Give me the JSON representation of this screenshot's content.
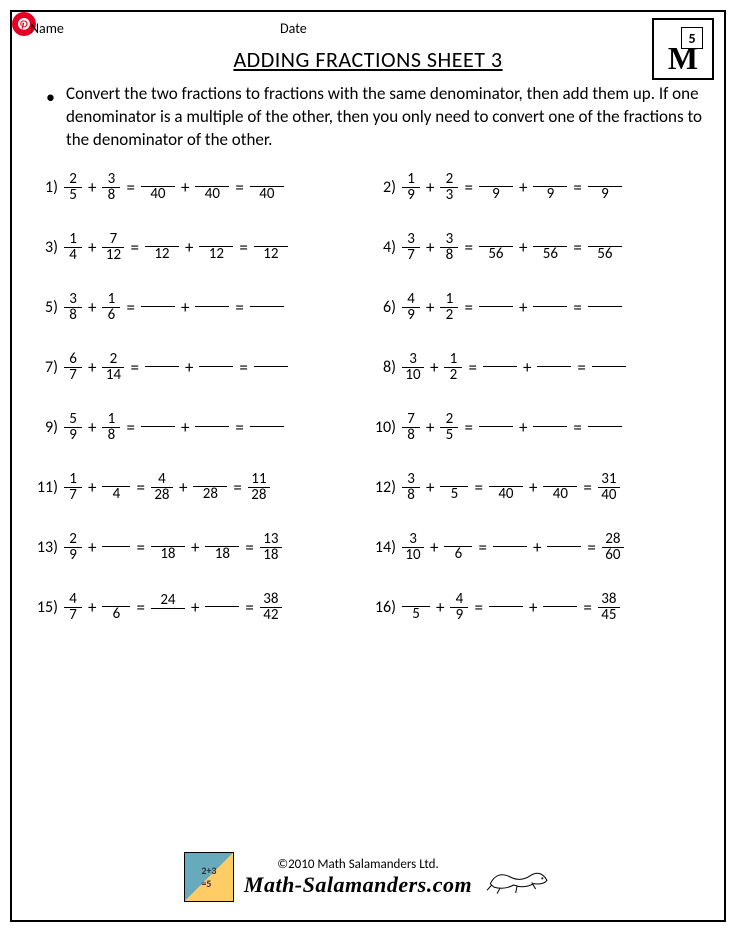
{
  "header": {
    "name_label": "Name",
    "date_label": "Date"
  },
  "logo": {
    "grade_digit": "5",
    "letter": "M"
  },
  "title": "ADDING FRACTIONS SHEET 3",
  "instructions": "Convert the two fractions to fractions with the same denominator, then add them up. If one denominator is a multiple of the other, then you only need to convert one of the fractions to the denominator of the other.",
  "footer": {
    "copyright": "©2010 Math Salamanders Ltd.",
    "site": "Math-Salamanders.com"
  },
  "blank_widths": {
    "narrow": 28,
    "wide": 34
  },
  "problems": [
    {
      "n": "1)",
      "a": {
        "num": "2",
        "den": "5"
      },
      "b": {
        "num": "3",
        "den": "8"
      },
      "r": [
        {
          "num": "",
          "den": "40"
        },
        {
          "num": "",
          "den": "40"
        },
        {
          "num": "",
          "den": "40"
        }
      ]
    },
    {
      "n": "2)",
      "a": {
        "num": "1",
        "den": "9"
      },
      "b": {
        "num": "2",
        "den": "3"
      },
      "r": [
        {
          "num": "",
          "den": "9"
        },
        {
          "num": "",
          "den": "9"
        },
        {
          "num": "",
          "den": "9"
        }
      ]
    },
    {
      "n": "3)",
      "a": {
        "num": "1",
        "den": "4"
      },
      "b": {
        "num": "7",
        "den": "12"
      },
      "r": [
        {
          "num": "",
          "den": "12"
        },
        {
          "num": "",
          "den": "12"
        },
        {
          "num": "",
          "den": "12"
        }
      ]
    },
    {
      "n": "4)",
      "a": {
        "num": "3",
        "den": "7"
      },
      "b": {
        "num": "3",
        "den": "8"
      },
      "r": [
        {
          "num": "",
          "den": "56"
        },
        {
          "num": "",
          "den": "56"
        },
        {
          "num": "",
          "den": "56"
        }
      ]
    },
    {
      "n": "5)",
      "a": {
        "num": "3",
        "den": "8"
      },
      "b": {
        "num": "1",
        "den": "6"
      },
      "r": [
        {
          "num": "",
          "den": ""
        },
        {
          "num": "",
          "den": ""
        },
        {
          "num": "",
          "den": ""
        }
      ]
    },
    {
      "n": "6)",
      "a": {
        "num": "4",
        "den": "9"
      },
      "b": {
        "num": "1",
        "den": "2"
      },
      "r": [
        {
          "num": "",
          "den": ""
        },
        {
          "num": "",
          "den": ""
        },
        {
          "num": "",
          "den": ""
        }
      ]
    },
    {
      "n": "7)",
      "a": {
        "num": "6",
        "den": "7"
      },
      "b": {
        "num": "2",
        "den": "14"
      },
      "r": [
        {
          "num": "",
          "den": ""
        },
        {
          "num": "",
          "den": ""
        },
        {
          "num": "",
          "den": ""
        }
      ]
    },
    {
      "n": "8)",
      "a": {
        "num": "3",
        "den": "10"
      },
      "b": {
        "num": "1",
        "den": "2"
      },
      "r": [
        {
          "num": "",
          "den": ""
        },
        {
          "num": "",
          "den": ""
        },
        {
          "num": "",
          "den": ""
        }
      ]
    },
    {
      "n": "9)",
      "a": {
        "num": "5",
        "den": "9"
      },
      "b": {
        "num": "1",
        "den": "8"
      },
      "r": [
        {
          "num": "",
          "den": ""
        },
        {
          "num": "",
          "den": ""
        },
        {
          "num": "",
          "den": ""
        }
      ]
    },
    {
      "n": "10)",
      "a": {
        "num": "7",
        "den": "8"
      },
      "b": {
        "num": "2",
        "den": "5"
      },
      "r": [
        {
          "num": "",
          "den": ""
        },
        {
          "num": "",
          "den": ""
        },
        {
          "num": "",
          "den": ""
        }
      ]
    },
    {
      "n": "11)",
      "a": {
        "num": "1",
        "den": "7"
      },
      "b": {
        "num": "",
        "den": "4"
      },
      "r": [
        {
          "num": "4",
          "den": "28"
        },
        {
          "num": "",
          "den": "28"
        },
        {
          "num": "11",
          "den": "28"
        }
      ]
    },
    {
      "n": "12)",
      "a": {
        "num": "3",
        "den": "8"
      },
      "b": {
        "num": "",
        "den": "5"
      },
      "r": [
        {
          "num": "",
          "den": "40"
        },
        {
          "num": "",
          "den": "40"
        },
        {
          "num": "31",
          "den": "40"
        }
      ]
    },
    {
      "n": "13)",
      "a": {
        "num": "2",
        "den": "9"
      },
      "b": {
        "num": "",
        "den": ""
      },
      "r": [
        {
          "num": "",
          "den": "18"
        },
        {
          "num": "",
          "den": "18"
        },
        {
          "num": "13",
          "den": "18"
        }
      ]
    },
    {
      "n": "14)",
      "a": {
        "num": "3",
        "den": "10"
      },
      "b": {
        "num": "",
        "den": "6"
      },
      "r": [
        {
          "num": "",
          "den": ""
        },
        {
          "num": "",
          "den": ""
        },
        {
          "num": "28",
          "den": "60"
        }
      ]
    },
    {
      "n": "15)",
      "a": {
        "num": "4",
        "den": "7"
      },
      "b": {
        "num": "",
        "den": "6"
      },
      "r": [
        {
          "num": "24",
          "den": ""
        },
        {
          "num": "",
          "den": ""
        },
        {
          "num": "38",
          "den": "42"
        }
      ]
    },
    {
      "n": "16)",
      "a": {
        "num": "",
        "den": "5"
      },
      "b": {
        "num": "4",
        "den": "9"
      },
      "r": [
        {
          "num": "",
          "den": ""
        },
        {
          "num": "",
          "den": ""
        },
        {
          "num": "38",
          "den": "45"
        }
      ]
    }
  ]
}
